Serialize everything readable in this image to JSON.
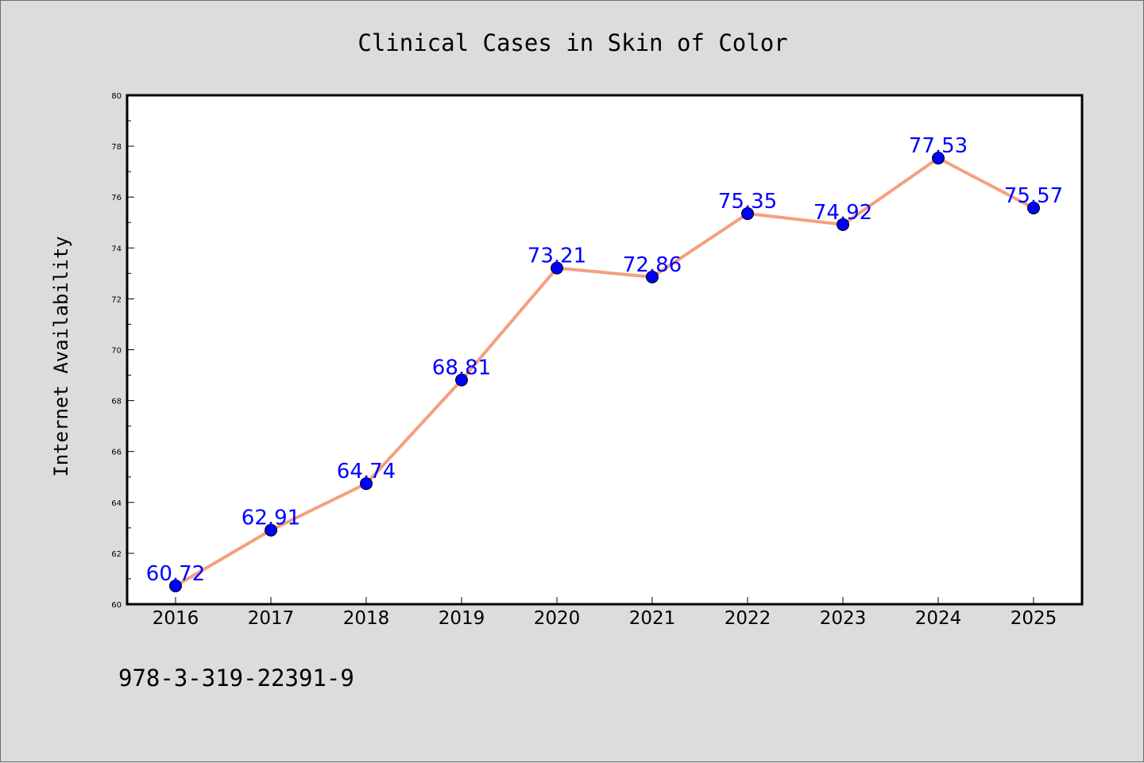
{
  "chart_data": {
    "type": "line",
    "title": "Clinical Cases in Skin of Color",
    "xlabel": "",
    "ylabel": "Internet Availability",
    "categories": [
      "2016",
      "2017",
      "2018",
      "2019",
      "2020",
      "2021",
      "2022",
      "2023",
      "2024",
      "2025"
    ],
    "series": [
      {
        "values": [
          60.72,
          62.91,
          64.74,
          68.81,
          73.21,
          72.86,
          75.35,
          74.92,
          77.53,
          75.57
        ],
        "labels": [
          "60.72",
          "62.91",
          "64.74",
          "68.81",
          "73.21",
          "72.86",
          "75.35",
          "74.92",
          "77.53",
          "75.57"
        ],
        "line_color": "#f4a07e",
        "marker_color": "#0000ff"
      }
    ],
    "ylim": [
      60,
      80
    ],
    "yticks": [
      "60",
      "62",
      "64",
      "66",
      "68",
      "70",
      "72",
      "74",
      "76",
      "78",
      "80"
    ],
    "grid": false,
    "legend": "none"
  },
  "annotation": {
    "text": "978-3-319-22391-9"
  },
  "colors": {
    "figure_background": "#dcdcdc",
    "plot_background": "#ffffff",
    "axes": "#000000",
    "data_labels": "#0000ff"
  }
}
